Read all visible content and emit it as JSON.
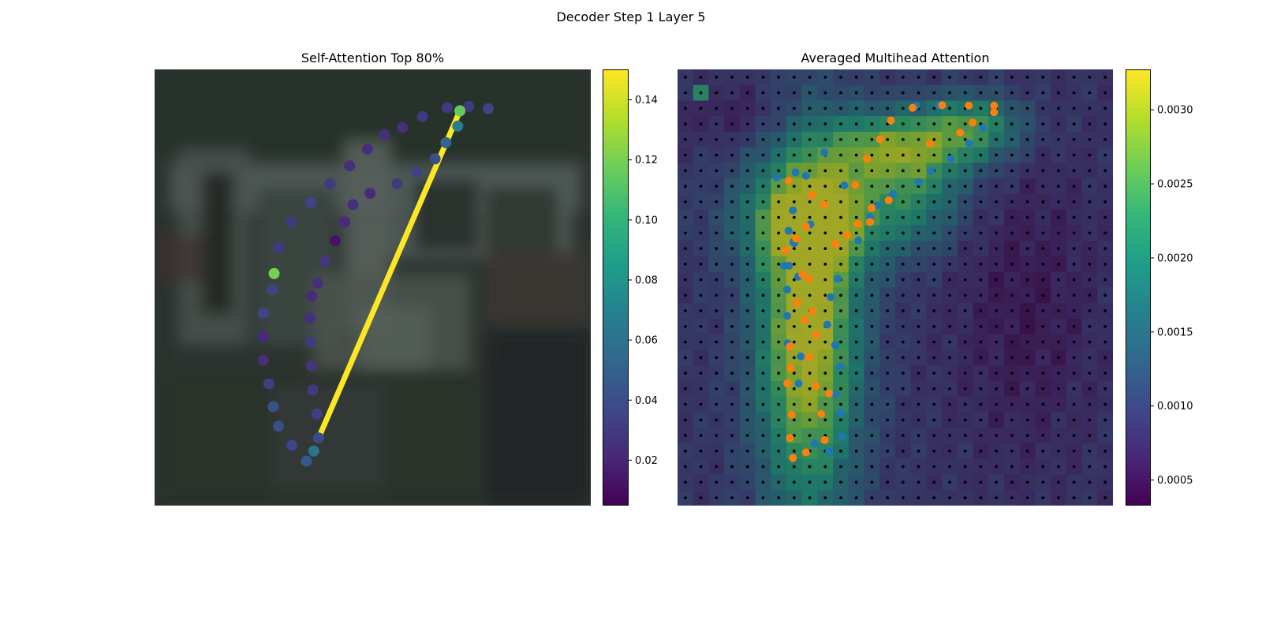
{
  "figure": {
    "title": "Decoder Step 1 Layer 5"
  },
  "chart_data": [
    {
      "type": "scatter",
      "title": "Self-Attention Top 80%",
      "background": "blurred grayscale vehicle photo",
      "colormap": "viridis",
      "colorbar": {
        "range": [
          0.005,
          0.15
        ],
        "ticks": [
          0.02,
          0.04,
          0.06,
          0.08,
          0.1,
          0.12,
          0.14
        ],
        "tick_labels": [
          "0.02",
          "0.04",
          "0.06",
          "0.08",
          "0.10",
          "0.12",
          "0.14"
        ]
      },
      "line": {
        "from_index": 18,
        "to_index": 0,
        "color": "#fde725"
      },
      "points": [
        [
          0.7,
          0.095,
          0.115
        ],
        [
          0.695,
          0.13,
          0.065
        ],
        [
          0.668,
          0.168,
          0.052
        ],
        [
          0.643,
          0.205,
          0.04
        ],
        [
          0.601,
          0.235,
          0.034
        ],
        [
          0.556,
          0.262,
          0.03
        ],
        [
          0.494,
          0.284,
          0.022
        ],
        [
          0.455,
          0.31,
          0.025
        ],
        [
          0.436,
          0.35,
          0.022
        ],
        [
          0.414,
          0.393,
          0.012
        ],
        [
          0.391,
          0.44,
          0.028
        ],
        [
          0.374,
          0.49,
          0.025
        ],
        [
          0.36,
          0.52,
          0.022
        ],
        [
          0.356,
          0.57,
          0.025
        ],
        [
          0.358,
          0.625,
          0.03
        ],
        [
          0.359,
          0.68,
          0.028
        ],
        [
          0.363,
          0.735,
          0.03
        ],
        [
          0.372,
          0.79,
          0.032
        ],
        [
          0.376,
          0.845,
          0.038
        ],
        [
          0.365,
          0.875,
          0.06
        ],
        [
          0.348,
          0.898,
          0.045
        ],
        [
          0.315,
          0.862,
          0.035
        ],
        [
          0.284,
          0.818,
          0.04
        ],
        [
          0.272,
          0.773,
          0.042
        ],
        [
          0.262,
          0.721,
          0.032
        ],
        [
          0.249,
          0.667,
          0.025
        ],
        [
          0.249,
          0.613,
          0.022
        ],
        [
          0.249,
          0.559,
          0.035
        ],
        [
          0.27,
          0.505,
          0.035
        ],
        [
          0.274,
          0.468,
          0.12
        ],
        [
          0.284,
          0.408,
          0.03
        ],
        [
          0.313,
          0.35,
          0.03
        ],
        [
          0.358,
          0.305,
          0.035
        ],
        [
          0.402,
          0.262,
          0.03
        ],
        [
          0.447,
          0.221,
          0.025
        ],
        [
          0.488,
          0.183,
          0.025
        ],
        [
          0.527,
          0.15,
          0.025
        ],
        [
          0.568,
          0.133,
          0.025
        ],
        [
          0.614,
          0.108,
          0.03
        ],
        [
          0.671,
          0.088,
          0.03
        ],
        [
          0.72,
          0.085,
          0.03
        ],
        [
          0.765,
          0.09,
          0.035
        ]
      ]
    },
    {
      "type": "heatmap",
      "title": "Averaged Multihead Attention",
      "colormap": "viridis",
      "grid": {
        "rows": 28,
        "cols": 28
      },
      "colorbar": {
        "range": [
          0.00033,
          0.00327
        ],
        "ticks": [
          0.0005,
          0.001,
          0.0015,
          0.002,
          0.0025,
          0.003
        ],
        "tick_labels": [
          "0.0005",
          "0.0010",
          "0.0015",
          "0.0020",
          "0.0025",
          "0.0030"
        ]
      },
      "series": [
        {
          "color": "#1f77b4",
          "points": [
            [
              0.548,
              0.083
            ],
            [
              0.6,
              0.083
            ],
            [
              0.702,
              0.134
            ],
            [
              0.67,
              0.17
            ],
            [
              0.628,
              0.205
            ],
            [
              0.582,
              0.233
            ],
            [
              0.554,
              0.258
            ],
            [
              0.495,
              0.285
            ],
            [
              0.458,
              0.312
            ],
            [
              0.442,
              0.338
            ],
            [
              0.415,
              0.392
            ],
            [
              0.383,
              0.266
            ],
            [
              0.337,
              0.19
            ],
            [
              0.295,
              0.244
            ],
            [
              0.305,
              0.355
            ],
            [
              0.268,
              0.398
            ],
            [
              0.277,
              0.475
            ],
            [
              0.368,
              0.48
            ],
            [
              0.352,
              0.522
            ],
            [
              0.344,
              0.585
            ],
            [
              0.362,
              0.632
            ],
            [
              0.374,
              0.681
            ],
            [
              0.363,
              0.745
            ],
            [
              0.375,
              0.787
            ],
            [
              0.378,
              0.842
            ],
            [
              0.348,
              0.876
            ],
            [
              0.315,
              0.858
            ],
            [
              0.278,
              0.72
            ],
            [
              0.283,
              0.658
            ],
            [
              0.253,
              0.628
            ],
            [
              0.252,
              0.565
            ],
            [
              0.252,
              0.505
            ],
            [
              0.256,
              0.45
            ],
            [
              0.266,
              0.396
            ],
            [
              0.245,
              0.45
            ],
            [
              0.255,
              0.37
            ],
            [
              0.265,
              0.323
            ],
            [
              0.228,
              0.248
            ],
            [
              0.271,
              0.236
            ]
          ]
        },
        {
          "color": "#ff7f0e",
          "points": [
            [
              0.54,
              0.088
            ],
            [
              0.608,
              0.082
            ],
            [
              0.669,
              0.083
            ],
            [
              0.727,
              0.083
            ],
            [
              0.727,
              0.098
            ],
            [
              0.678,
              0.122
            ],
            [
              0.649,
              0.145
            ],
            [
              0.58,
              0.17
            ],
            [
              0.49,
              0.117
            ],
            [
              0.465,
              0.16
            ],
            [
              0.435,
              0.205
            ],
            [
              0.408,
              0.265
            ],
            [
              0.485,
              0.3
            ],
            [
              0.446,
              0.318
            ],
            [
              0.414,
              0.354
            ],
            [
              0.442,
              0.35
            ],
            [
              0.39,
              0.38
            ],
            [
              0.363,
              0.4
            ],
            [
              0.337,
              0.31
            ],
            [
              0.255,
              0.255
            ],
            [
              0.309,
              0.288
            ],
            [
              0.295,
              0.36
            ],
            [
              0.272,
              0.388
            ],
            [
              0.248,
              0.415
            ],
            [
              0.287,
              0.47
            ],
            [
              0.303,
              0.48
            ],
            [
              0.275,
              0.535
            ],
            [
              0.292,
              0.575
            ],
            [
              0.258,
              0.635
            ],
            [
              0.26,
              0.685
            ],
            [
              0.252,
              0.72
            ],
            [
              0.262,
              0.792
            ],
            [
              0.258,
              0.845
            ],
            [
              0.265,
              0.891
            ],
            [
              0.295,
              0.878
            ],
            [
              0.338,
              0.85
            ],
            [
              0.33,
              0.79
            ],
            [
              0.348,
              0.743
            ],
            [
              0.318,
              0.725
            ],
            [
              0.302,
              0.659
            ],
            [
              0.318,
              0.608
            ],
            [
              0.31,
              0.555
            ]
          ]
        }
      ]
    }
  ]
}
